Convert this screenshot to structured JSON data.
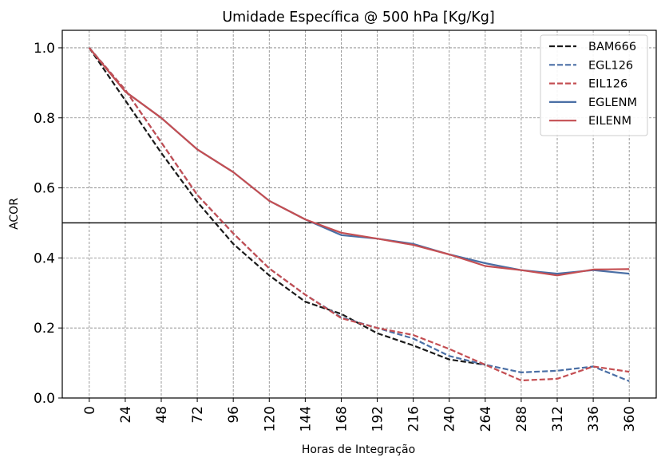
{
  "chart_data": {
    "type": "line",
    "title": "Umidade Específica @ 500 hPa [Kg/Kg]",
    "xlabel": "Horas de Integração",
    "ylabel": "ACOR",
    "x": [
      0,
      24,
      48,
      72,
      96,
      120,
      144,
      168,
      192,
      216,
      240,
      264,
      288,
      312,
      336,
      360
    ],
    "xticks": [
      "0",
      "24",
      "48",
      "72",
      "96",
      "120",
      "144",
      "168",
      "192",
      "216",
      "240",
      "264",
      "288",
      "312",
      "336",
      "360"
    ],
    "yticks": [
      "0.0",
      "0.2",
      "0.4",
      "0.6",
      "0.8",
      "1.0"
    ],
    "ylim": [
      0,
      1.05
    ],
    "xlim": [
      -18,
      378
    ],
    "grid": true,
    "legend_position": "top-right",
    "reference_line": 0.5,
    "series": [
      {
        "name": "BAM666",
        "style": "dashed",
        "color": "#1a1a1a",
        "values": [
          1.0,
          0.85,
          0.7,
          0.56,
          0.44,
          0.35,
          0.275,
          0.24,
          0.185,
          0.15,
          0.11,
          0.095,
          null,
          null,
          null,
          null
        ]
      },
      {
        "name": "EGL126",
        "style": "dashed",
        "color": "#4a6fa5",
        "values": [
          1.0,
          0.88,
          0.73,
          0.58,
          0.47,
          0.37,
          0.295,
          0.23,
          0.2,
          0.17,
          0.12,
          0.095,
          0.073,
          0.078,
          0.09,
          0.048
        ]
      },
      {
        "name": "EIL126",
        "style": "dashed",
        "color": "#c44e52",
        "values": [
          1.0,
          0.88,
          0.73,
          0.58,
          0.47,
          0.37,
          0.295,
          0.228,
          0.2,
          0.18,
          0.14,
          0.095,
          0.05,
          0.055,
          0.09,
          0.075
        ]
      },
      {
        "name": "EGLENM",
        "style": "solid",
        "color": "#4a6fa5",
        "values": [
          1.0,
          0.875,
          0.8,
          0.71,
          0.645,
          0.563,
          0.51,
          0.465,
          0.455,
          0.44,
          0.41,
          0.385,
          0.365,
          0.355,
          0.365,
          0.355
        ]
      },
      {
        "name": "EILENM",
        "style": "solid",
        "color": "#c44e52",
        "values": [
          1.0,
          0.875,
          0.8,
          0.71,
          0.645,
          0.563,
          0.51,
          0.472,
          0.455,
          0.437,
          0.41,
          0.377,
          0.365,
          0.35,
          0.367,
          0.368
        ]
      }
    ]
  }
}
